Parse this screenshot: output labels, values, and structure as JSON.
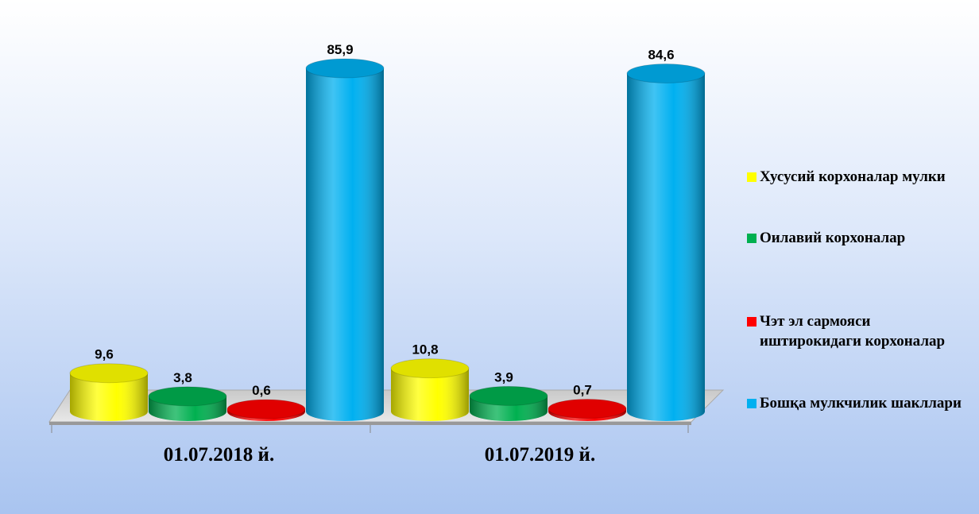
{
  "chart_data": {
    "type": "bar3d",
    "categories": [
      "01.07.2018 й.",
      "01.07.2019 й."
    ],
    "series": [
      {
        "name": "Хусусий корхоналар мулки",
        "color": "#ffff00",
        "values": [
          9.6,
          10.8
        ],
        "value_labels": [
          "9,6",
          "10,8"
        ]
      },
      {
        "name": "Оилавий корхоналар",
        "color": "#00b050",
        "values": [
          3.8,
          3.9
        ],
        "value_labels": [
          "3,8",
          "3,9"
        ]
      },
      {
        "name": "Чэт эл сармояси иштирокидаги корхоналар",
        "color": "#ff0000",
        "values": [
          0.6,
          0.7
        ],
        "value_labels": [
          "0,6",
          "0,7"
        ]
      },
      {
        "name": "Бошқа мулкчилик шакллари",
        "color": "#00b0f0",
        "values": [
          85.9,
          84.6
        ],
        "value_labels": [
          "85,9",
          "84,6"
        ]
      }
    ],
    "legend": "right"
  }
}
